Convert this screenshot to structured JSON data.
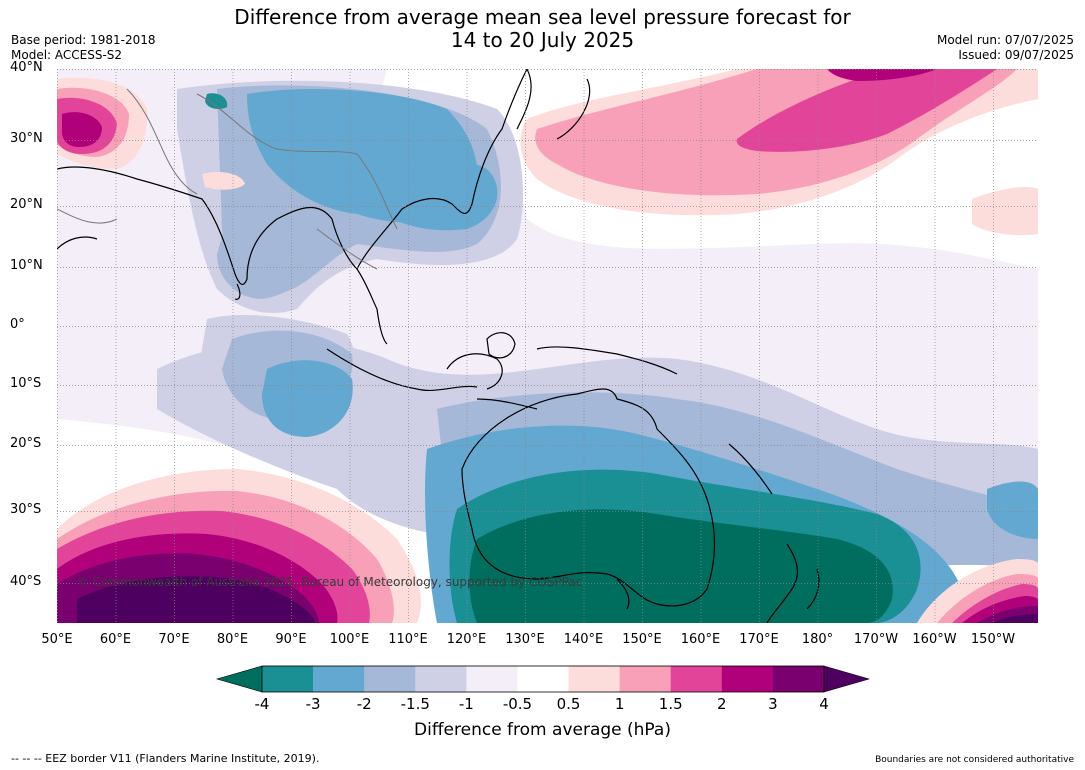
{
  "header": {
    "title_line1": "Difference from average mean sea level pressure forecast for",
    "title_line2": "14 to 20 July 2025",
    "base_period": "Base period: 1981-2018",
    "model": "Model: ACCESS-S2",
    "model_run": "Model run: 07/07/2025",
    "issued": "Issued: 09/07/2025"
  },
  "map": {
    "lat_labels": [
      "40°N",
      "30°N",
      "20°N",
      "10°N",
      "0°",
      "10°S",
      "20°S",
      "30°S",
      "40°S"
    ],
    "lon_labels": [
      "50°E",
      "60°E",
      "70°E",
      "80°E",
      "90°E",
      "100°E",
      "110°E",
      "120°E",
      "130°E",
      "140°E",
      "150°E",
      "160°E",
      "170°E",
      "180°",
      "170°W",
      "160°W",
      "150°W"
    ],
    "copyright": "© Commonwealth of Australia 2025, Bureau of Meteorology, supported by COSPPac"
  },
  "colorbar": {
    "ticks": [
      "-4",
      "-3",
      "-2",
      "-1.5",
      "-1",
      "-0.5",
      "0.5",
      "1",
      "1.5",
      "2",
      "3",
      "4"
    ],
    "colors": [
      "#1a8f94",
      "#62a8d0",
      "#a5b8d8",
      "#cfcfe6",
      "#f3eef7",
      "#ffffff",
      "#fddcdc",
      "#f7a0b8",
      "#e2449a",
      "#b0007a",
      "#7a0070"
    ],
    "under_color": "#006e5e",
    "over_color": "#4e0060",
    "label": "Difference from average (hPa)"
  },
  "footer": {
    "eez": "--  --  -- EEZ border V11 (Flanders Marine Institute, 2019).",
    "boundaries": "Boundaries are not considered authoritative"
  }
}
